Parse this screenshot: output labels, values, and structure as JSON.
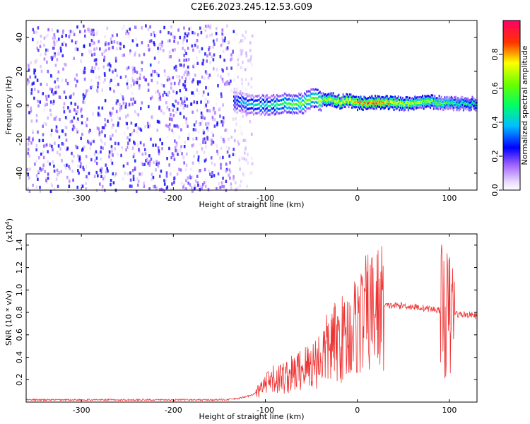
{
  "title": "C2E6.2023.245.12.53.G09",
  "chart_data": [
    {
      "type": "heatmap",
      "xlabel": "Height of straight line (km)",
      "ylabel": "Frequency (Hz)",
      "xlim": [
        -360,
        130
      ],
      "ylim": [
        -50,
        50
      ],
      "xticks": [
        -300,
        -200,
        -100,
        0,
        100
      ],
      "yticks": [
        -40,
        -20,
        0,
        20,
        40
      ],
      "noise_region": {
        "x_range": [
          -360,
          -135
        ],
        "y_range": [
          -50,
          48
        ],
        "level": 0.15
      },
      "signal_band": {
        "x_range": [
          -135,
          130
        ],
        "center_frequency": [
          [
            -135,
            2
          ],
          [
            -120,
            1
          ],
          [
            -100,
            0
          ],
          [
            -80,
            1
          ],
          [
            -60,
            1
          ],
          [
            -50,
            4
          ],
          [
            -40,
            3
          ],
          [
            -30,
            4
          ],
          [
            -20,
            2
          ],
          [
            -10,
            3
          ],
          [
            0,
            1
          ],
          [
            20,
            2
          ],
          [
            50,
            1
          ],
          [
            80,
            2
          ],
          [
            100,
            1
          ],
          [
            130,
            1
          ]
        ],
        "peak_amplitude": [
          [
            -135,
            0.3
          ],
          [
            -120,
            0.4
          ],
          [
            -100,
            0.45
          ],
          [
            -70,
            0.55
          ],
          [
            -50,
            0.6
          ],
          [
            -30,
            0.7
          ],
          [
            -10,
            0.75
          ],
          [
            0,
            0.8
          ],
          [
            20,
            0.85
          ],
          [
            50,
            0.7
          ],
          [
            80,
            0.65
          ],
          [
            100,
            0.5
          ],
          [
            130,
            0.45
          ]
        ]
      },
      "colorbar": {
        "label": "Normalized spectral amplitude",
        "range": [
          0,
          1
        ],
        "ticks": [
          "0.0",
          "0.2",
          "0.4",
          "0.6",
          "0.8"
        ]
      }
    },
    {
      "type": "line",
      "xlabel": "Height of straight line (km)",
      "ylabel": "SNR (10 * v/v)",
      "yscale_label": "(x10",
      "yscale_exp": "4",
      "yscale_close": ")",
      "xlim": [
        -360,
        130
      ],
      "ylim": [
        0,
        1.5
      ],
      "xticks": [
        -300,
        -200,
        -100,
        0,
        100
      ],
      "yticks": [
        "0.2",
        "0.4",
        "0.6",
        "0.8",
        "1.0",
        "1.2",
        "1.4"
      ],
      "color": "#ee3333",
      "series": [
        {
          "x": [
            -360,
            -300,
            -250,
            -200,
            -150,
            -130,
            -120,
            -110,
            -100,
            -90,
            -80,
            -70,
            -60,
            -50,
            -40,
            -30,
            -20,
            -10,
            0,
            10,
            20,
            30,
            40,
            50,
            60,
            70,
            80,
            90,
            95,
            100,
            105,
            110,
            120,
            130
          ],
          "y": [
            0.02,
            0.02,
            0.02,
            0.02,
            0.02,
            0.03,
            0.05,
            0.08,
            0.15,
            0.2,
            0.22,
            0.25,
            0.3,
            0.33,
            0.4,
            0.5,
            0.55,
            0.6,
            0.7,
            0.78,
            0.83,
            0.86,
            0.86,
            0.86,
            0.85,
            0.84,
            0.83,
            0.82,
            0.8,
            0.75,
            0.8,
            0.78,
            0.78,
            0.77
          ]
        }
      ]
    }
  ]
}
